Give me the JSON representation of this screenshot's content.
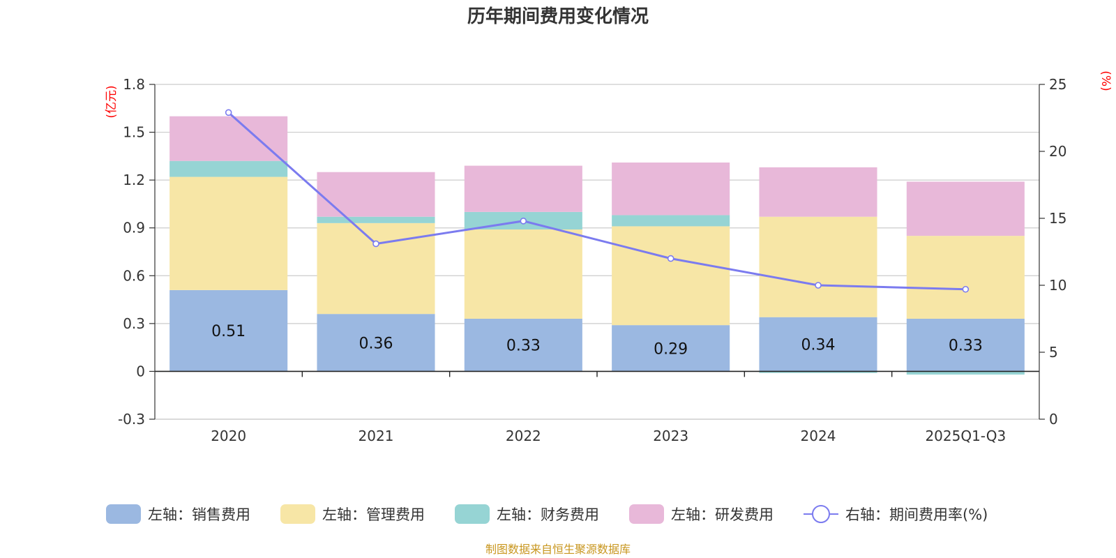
{
  "chart_data": {
    "type": "bar",
    "stacked": true,
    "title": "历年期间费用变化情况",
    "categories": [
      "2020",
      "2021",
      "2022",
      "2023",
      "2024",
      "2025Q1-Q3"
    ],
    "series": [
      {
        "name": "左轴：销售费用",
        "axis": "left",
        "color": "#9bb8e1",
        "values": [
          0.51,
          0.36,
          0.33,
          0.29,
          0.34,
          0.33
        ],
        "labels": [
          "0.51",
          "0.36",
          "0.33",
          "0.29",
          "0.34",
          "0.33"
        ]
      },
      {
        "name": "左轴：管理费用",
        "axis": "left",
        "color": "#f7e6a6",
        "values": [
          0.71,
          0.57,
          0.56,
          0.62,
          0.63,
          0.52
        ]
      },
      {
        "name": "左轴：财务费用",
        "axis": "left",
        "color": "#96d4d4",
        "values": [
          0.1,
          0.04,
          0.11,
          0.07,
          -0.01,
          -0.02
        ]
      },
      {
        "name": "左轴：研发费用",
        "axis": "left",
        "color": "#e8b8d9",
        "values": [
          0.28,
          0.28,
          0.29,
          0.33,
          0.31,
          0.34
        ]
      }
    ],
    "line_series": {
      "name": "右轴：期间费用率(%)",
      "axis": "right",
      "color": "#7b7bef",
      "values": [
        22.9,
        13.1,
        14.8,
        12.0,
        10.0,
        9.7
      ]
    },
    "left_axis": {
      "unit": "(亿元)",
      "ylim": [
        -0.3,
        1.8
      ],
      "ticks": [
        "-0.3",
        "0",
        "0.3",
        "0.6",
        "0.9",
        "1.2",
        "1.5",
        "1.8"
      ],
      "tick_values": [
        -0.3,
        0,
        0.3,
        0.6,
        0.9,
        1.2,
        1.5,
        1.8
      ]
    },
    "right_axis": {
      "unit": "(%)",
      "ylim": [
        0,
        25
      ],
      "ticks": [
        "0",
        "5",
        "10",
        "15",
        "20",
        "25"
      ],
      "tick_values": [
        0,
        5,
        10,
        15,
        20,
        25
      ]
    },
    "grid": true,
    "legend_position": "bottom"
  },
  "source_note": "制图数据来自恒生聚源数据库"
}
